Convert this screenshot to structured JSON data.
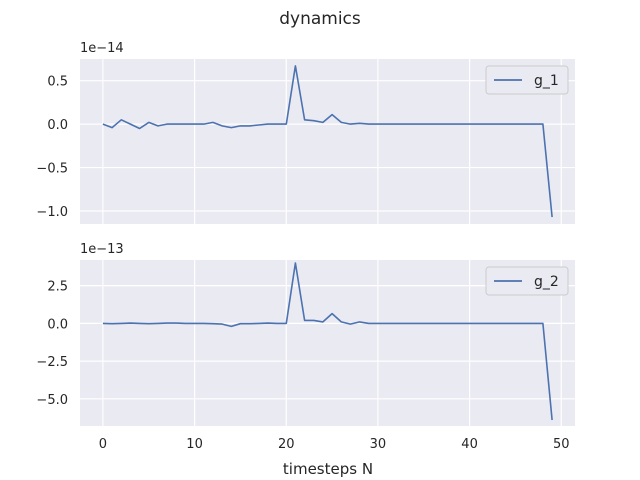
{
  "chart_data": {
    "type": "line",
    "title": "dynamics",
    "xlabel": "timesteps N",
    "xlim": [
      -2.5,
      51.5
    ],
    "xticks": [
      0,
      10,
      20,
      30,
      40,
      50
    ],
    "grid": true,
    "legend_position": "top-right",
    "line_color": "#4c72b0",
    "panels": [
      {
        "multiplier": "1e−14",
        "series_name": "g_1",
        "ylim": [
          -1.15,
          0.75
        ],
        "yticks": [
          0.5,
          0.0,
          -0.5,
          -1.0
        ],
        "ytick_labels": [
          "0.5",
          "0.0",
          "−0.5",
          "−1.0"
        ],
        "x": [
          0,
          1,
          2,
          3,
          4,
          5,
          6,
          7,
          8,
          9,
          10,
          11,
          12,
          13,
          14,
          15,
          16,
          17,
          18,
          19,
          20,
          21,
          22,
          23,
          24,
          25,
          26,
          27,
          28,
          29,
          30,
          31,
          32,
          33,
          34,
          35,
          36,
          37,
          38,
          39,
          40,
          41,
          42,
          43,
          44,
          45,
          46,
          47,
          48,
          49
        ],
        "values": [
          0.0,
          -0.04,
          0.05,
          0.0,
          -0.05,
          0.02,
          -0.02,
          0.0,
          0.0,
          0.0,
          0.0,
          0.0,
          0.02,
          -0.02,
          -0.04,
          -0.02,
          -0.02,
          -0.01,
          0.0,
          0.0,
          0.0,
          0.67,
          0.05,
          0.04,
          0.02,
          0.11,
          0.02,
          0.0,
          0.01,
          0.0,
          0.0,
          0.0,
          0.0,
          0.0,
          0.0,
          0.0,
          0.0,
          0.0,
          0.0,
          0.0,
          0.0,
          0.0,
          0.0,
          0.0,
          0.0,
          0.0,
          0.0,
          0.0,
          0.0,
          -1.07
        ]
      },
      {
        "multiplier": "1e−13",
        "series_name": "g_2",
        "ylim": [
          -6.8,
          4.2
        ],
        "yticks": [
          2.5,
          0.0,
          -2.5,
          -5.0
        ],
        "ytick_labels": [
          "2.5",
          "0.0",
          "−2.5",
          "−5.0"
        ],
        "x": [
          0,
          1,
          2,
          3,
          4,
          5,
          6,
          7,
          8,
          9,
          10,
          11,
          12,
          13,
          14,
          15,
          16,
          17,
          18,
          19,
          20,
          21,
          22,
          23,
          24,
          25,
          26,
          27,
          28,
          29,
          30,
          31,
          32,
          33,
          34,
          35,
          36,
          37,
          38,
          39,
          40,
          41,
          42,
          43,
          44,
          45,
          46,
          47,
          48,
          49
        ],
        "values": [
          0.0,
          -0.02,
          0.0,
          0.02,
          0.0,
          -0.02,
          0.0,
          0.02,
          0.02,
          0.0,
          0.0,
          0.0,
          -0.02,
          -0.05,
          -0.2,
          -0.02,
          -0.02,
          0.0,
          0.02,
          0.0,
          0.0,
          4.0,
          0.2,
          0.2,
          0.1,
          0.65,
          0.1,
          -0.05,
          0.1,
          0.0,
          0.0,
          0.0,
          0.0,
          0.0,
          0.0,
          0.0,
          0.0,
          0.0,
          0.0,
          0.0,
          0.0,
          0.0,
          0.0,
          0.0,
          0.0,
          0.0,
          0.0,
          0.0,
          0.0,
          -6.4
        ]
      }
    ]
  }
}
